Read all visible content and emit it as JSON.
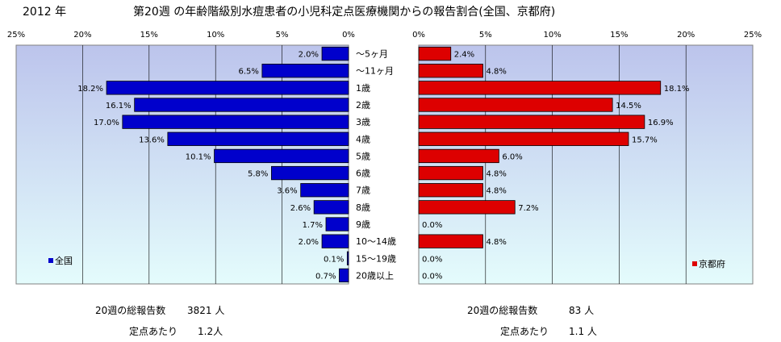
{
  "header": {
    "year": "2012 年",
    "title": "第20週 の年齢階級別水痘患者の小児科定点医療機関からの報告割合(全国、京都府)"
  },
  "colors": {
    "national": "#0000cc",
    "kyoto": "#dd0000",
    "plot_bg_top": "#bcc4ec",
    "plot_bg_bottom": "#e4fcfc"
  },
  "chart_data": [
    {
      "type": "bar",
      "orientation": "horizontal",
      "direction": "leftward",
      "legend_label": "全国",
      "legend_position": "bottom-left",
      "categories": [
        "～5ヶ月",
        "～11ヶ月",
        "1歳",
        "2歳",
        "3歳",
        "4歳",
        "5歳",
        "6歳",
        "7歳",
        "8歳",
        "9歳",
        "10～14歳",
        "15～19歳",
        "20歳以上"
      ],
      "values": [
        2.0,
        6.5,
        18.2,
        16.1,
        17.0,
        13.6,
        10.1,
        5.8,
        3.6,
        2.6,
        1.7,
        2.0,
        0.1,
        0.7
      ],
      "value_labels": [
        "2.0%",
        "6.5%",
        "18.2%",
        "16.1%",
        "17.0%",
        "13.6%",
        "10.1%",
        "5.8%",
        "3.6%",
        "2.6%",
        "1.7%",
        "2.0%",
        "0.1%",
        "0.7%"
      ],
      "xlim": [
        0,
        25
      ],
      "ticks": [
        "25%",
        "20%",
        "15%",
        "10%",
        "5%",
        "0%"
      ],
      "grid": true
    },
    {
      "type": "bar",
      "orientation": "horizontal",
      "direction": "rightward",
      "legend_label": "京都府",
      "legend_position": "bottom-right",
      "categories": [
        "～5ヶ月",
        "～11ヶ月",
        "1歳",
        "2歳",
        "3歳",
        "4歳",
        "5歳",
        "6歳",
        "7歳",
        "8歳",
        "9歳",
        "10～14歳",
        "15～19歳",
        "20歳以上"
      ],
      "values": [
        2.4,
        4.8,
        18.1,
        14.5,
        16.9,
        15.7,
        6.0,
        4.8,
        4.8,
        7.2,
        0.0,
        4.8,
        0.0,
        0.0
      ],
      "value_labels": [
        "2.4%",
        "4.8%",
        "18.1%",
        "14.5%",
        "16.9%",
        "15.7%",
        "6.0%",
        "4.8%",
        "4.8%",
        "7.2%",
        "0.0%",
        "4.8%",
        "0.0%",
        "0.0%"
      ],
      "xlim": [
        0,
        25
      ],
      "ticks": [
        "0%",
        "5%",
        "10%",
        "15%",
        "20%",
        "25%"
      ],
      "grid": true
    }
  ],
  "footer": {
    "national": {
      "total_label": "20週の総報告数",
      "total_value": "3821 人",
      "per_label": "定点あたり",
      "per_value": "1.2人"
    },
    "kyoto": {
      "total_label": "20週の総報告数",
      "total_value": "83 人",
      "per_label": "定点あたり",
      "per_value": "1.1 人"
    }
  }
}
